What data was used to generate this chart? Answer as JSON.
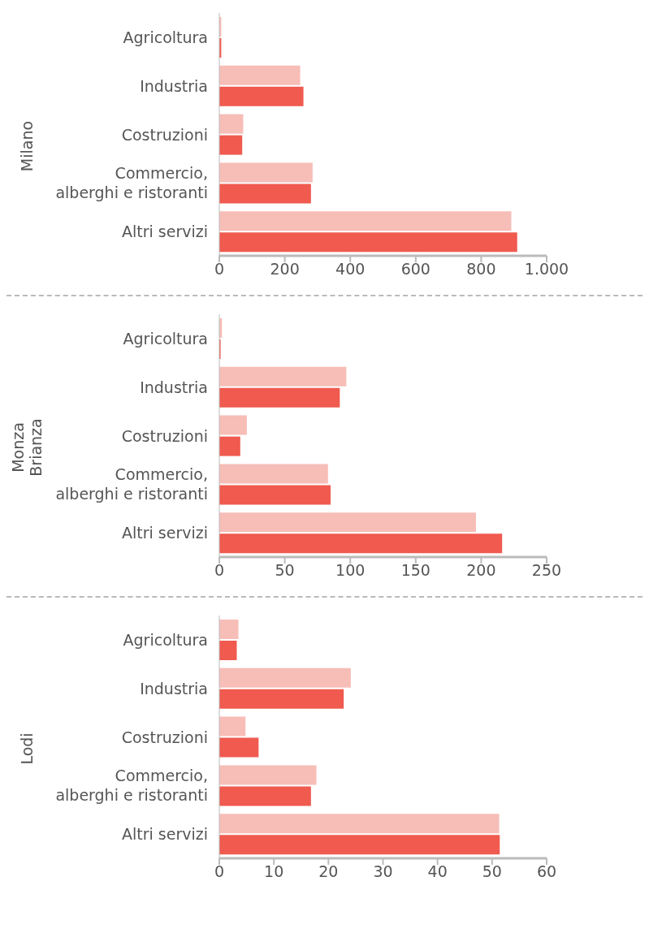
{
  "chart_data": [
    {
      "type": "bar",
      "orientation": "horizontal",
      "ylabel": "Milano",
      "categories": [
        "Agricoltura",
        "Industria",
        "Costruzioni",
        "Commercio,\nalberghi e ristoranti",
        "Altri servizi"
      ],
      "series": [
        {
          "color": "#f7bdb7",
          "values": [
            6,
            247,
            73,
            285,
            892
          ]
        },
        {
          "color": "#f05a4f",
          "values": [
            6,
            257,
            70,
            280,
            910
          ]
        }
      ],
      "xlim": [
        0,
        1000
      ],
      "xticks": [
        0,
        200,
        400,
        600,
        800,
        {
          "value": 1000,
          "label": "1.000"
        }
      ],
      "grid": false
    },
    {
      "type": "bar",
      "orientation": "horizontal",
      "ylabel": "Monza\nBrianza",
      "categories": [
        "Agricoltura",
        "Industria",
        "Costruzioni",
        "Commercio,\nalberghi e ristoranti",
        "Altri servizi"
      ],
      "series": [
        {
          "color": "#f7bdb7",
          "values": [
            2,
            97,
            21,
            83,
            196
          ]
        },
        {
          "color": "#f05a4f",
          "values": [
            1,
            92,
            16,
            85,
            216
          ]
        }
      ],
      "xlim": [
        0,
        250
      ],
      "xticks": [
        0,
        50,
        100,
        150,
        200,
        250
      ],
      "grid": false
    },
    {
      "type": "bar",
      "orientation": "horizontal",
      "ylabel": "Lodi",
      "categories": [
        "Agricoltura",
        "Industria",
        "Costruzioni",
        "Commercio,\nalberghi e ristoranti",
        "Altri servizi"
      ],
      "series": [
        {
          "color": "#f7bdb7",
          "values": [
            3.5,
            24.1,
            4.8,
            17.8,
            51.3
          ]
        },
        {
          "color": "#f05a4f",
          "values": [
            3.2,
            22.8,
            7.2,
            16.8,
            51.4
          ]
        }
      ],
      "xlim": [
        0,
        60
      ],
      "xticks": [
        0,
        10,
        20,
        30,
        40,
        50,
        60
      ],
      "grid": false
    }
  ]
}
